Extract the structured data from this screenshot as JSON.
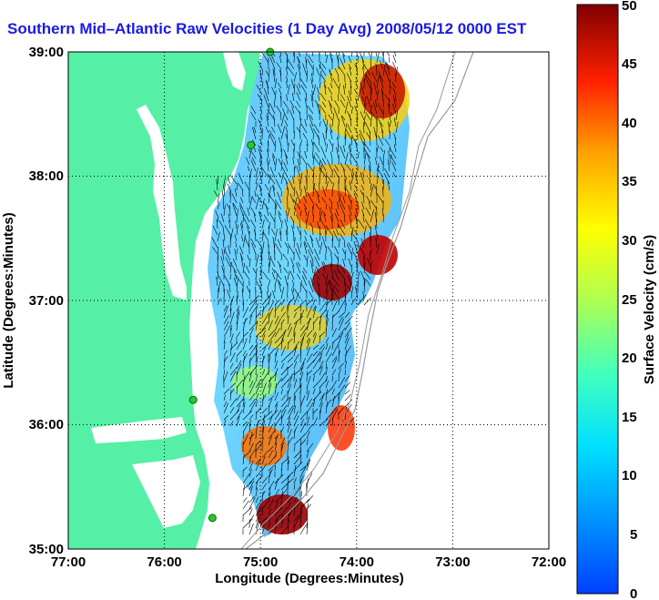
{
  "title": "Southern Mid–Atlantic Raw Velocities (1 Day Avg) 2008/05/12 0000 EST",
  "x_axis": {
    "label": "Longitude (Degrees:Minutes)",
    "ticks": [
      "77:00",
      "76:00",
      "75:00",
      "74:00",
      "73:00",
      "72:00"
    ]
  },
  "y_axis": {
    "label": "Latitude (Degrees:Minutes)",
    "ticks": [
      "39:00",
      "38:00",
      "37:00",
      "36:00",
      "35:00"
    ]
  },
  "colorbar": {
    "label": "Surface Velocity (cm/s)",
    "ticks": [
      "50",
      "45",
      "40",
      "35",
      "30",
      "25",
      "20",
      "15",
      "10",
      "5",
      "0"
    ],
    "range": [
      0,
      50
    ]
  },
  "colors": {
    "land": "#55f0a5",
    "title": "#1a1ae6",
    "station": "#22cc22"
  },
  "map_extent": {
    "lon": [
      -77,
      -72
    ],
    "lat": [
      35,
      39
    ]
  },
  "grid": true,
  "stations": [
    {
      "lon": -74.9,
      "lat": 39.0
    },
    {
      "lon": -75.1,
      "lat": 38.25
    },
    {
      "lon": -75.7,
      "lat": 36.2
    },
    {
      "lon": -75.5,
      "lat": 35.25
    }
  ]
}
